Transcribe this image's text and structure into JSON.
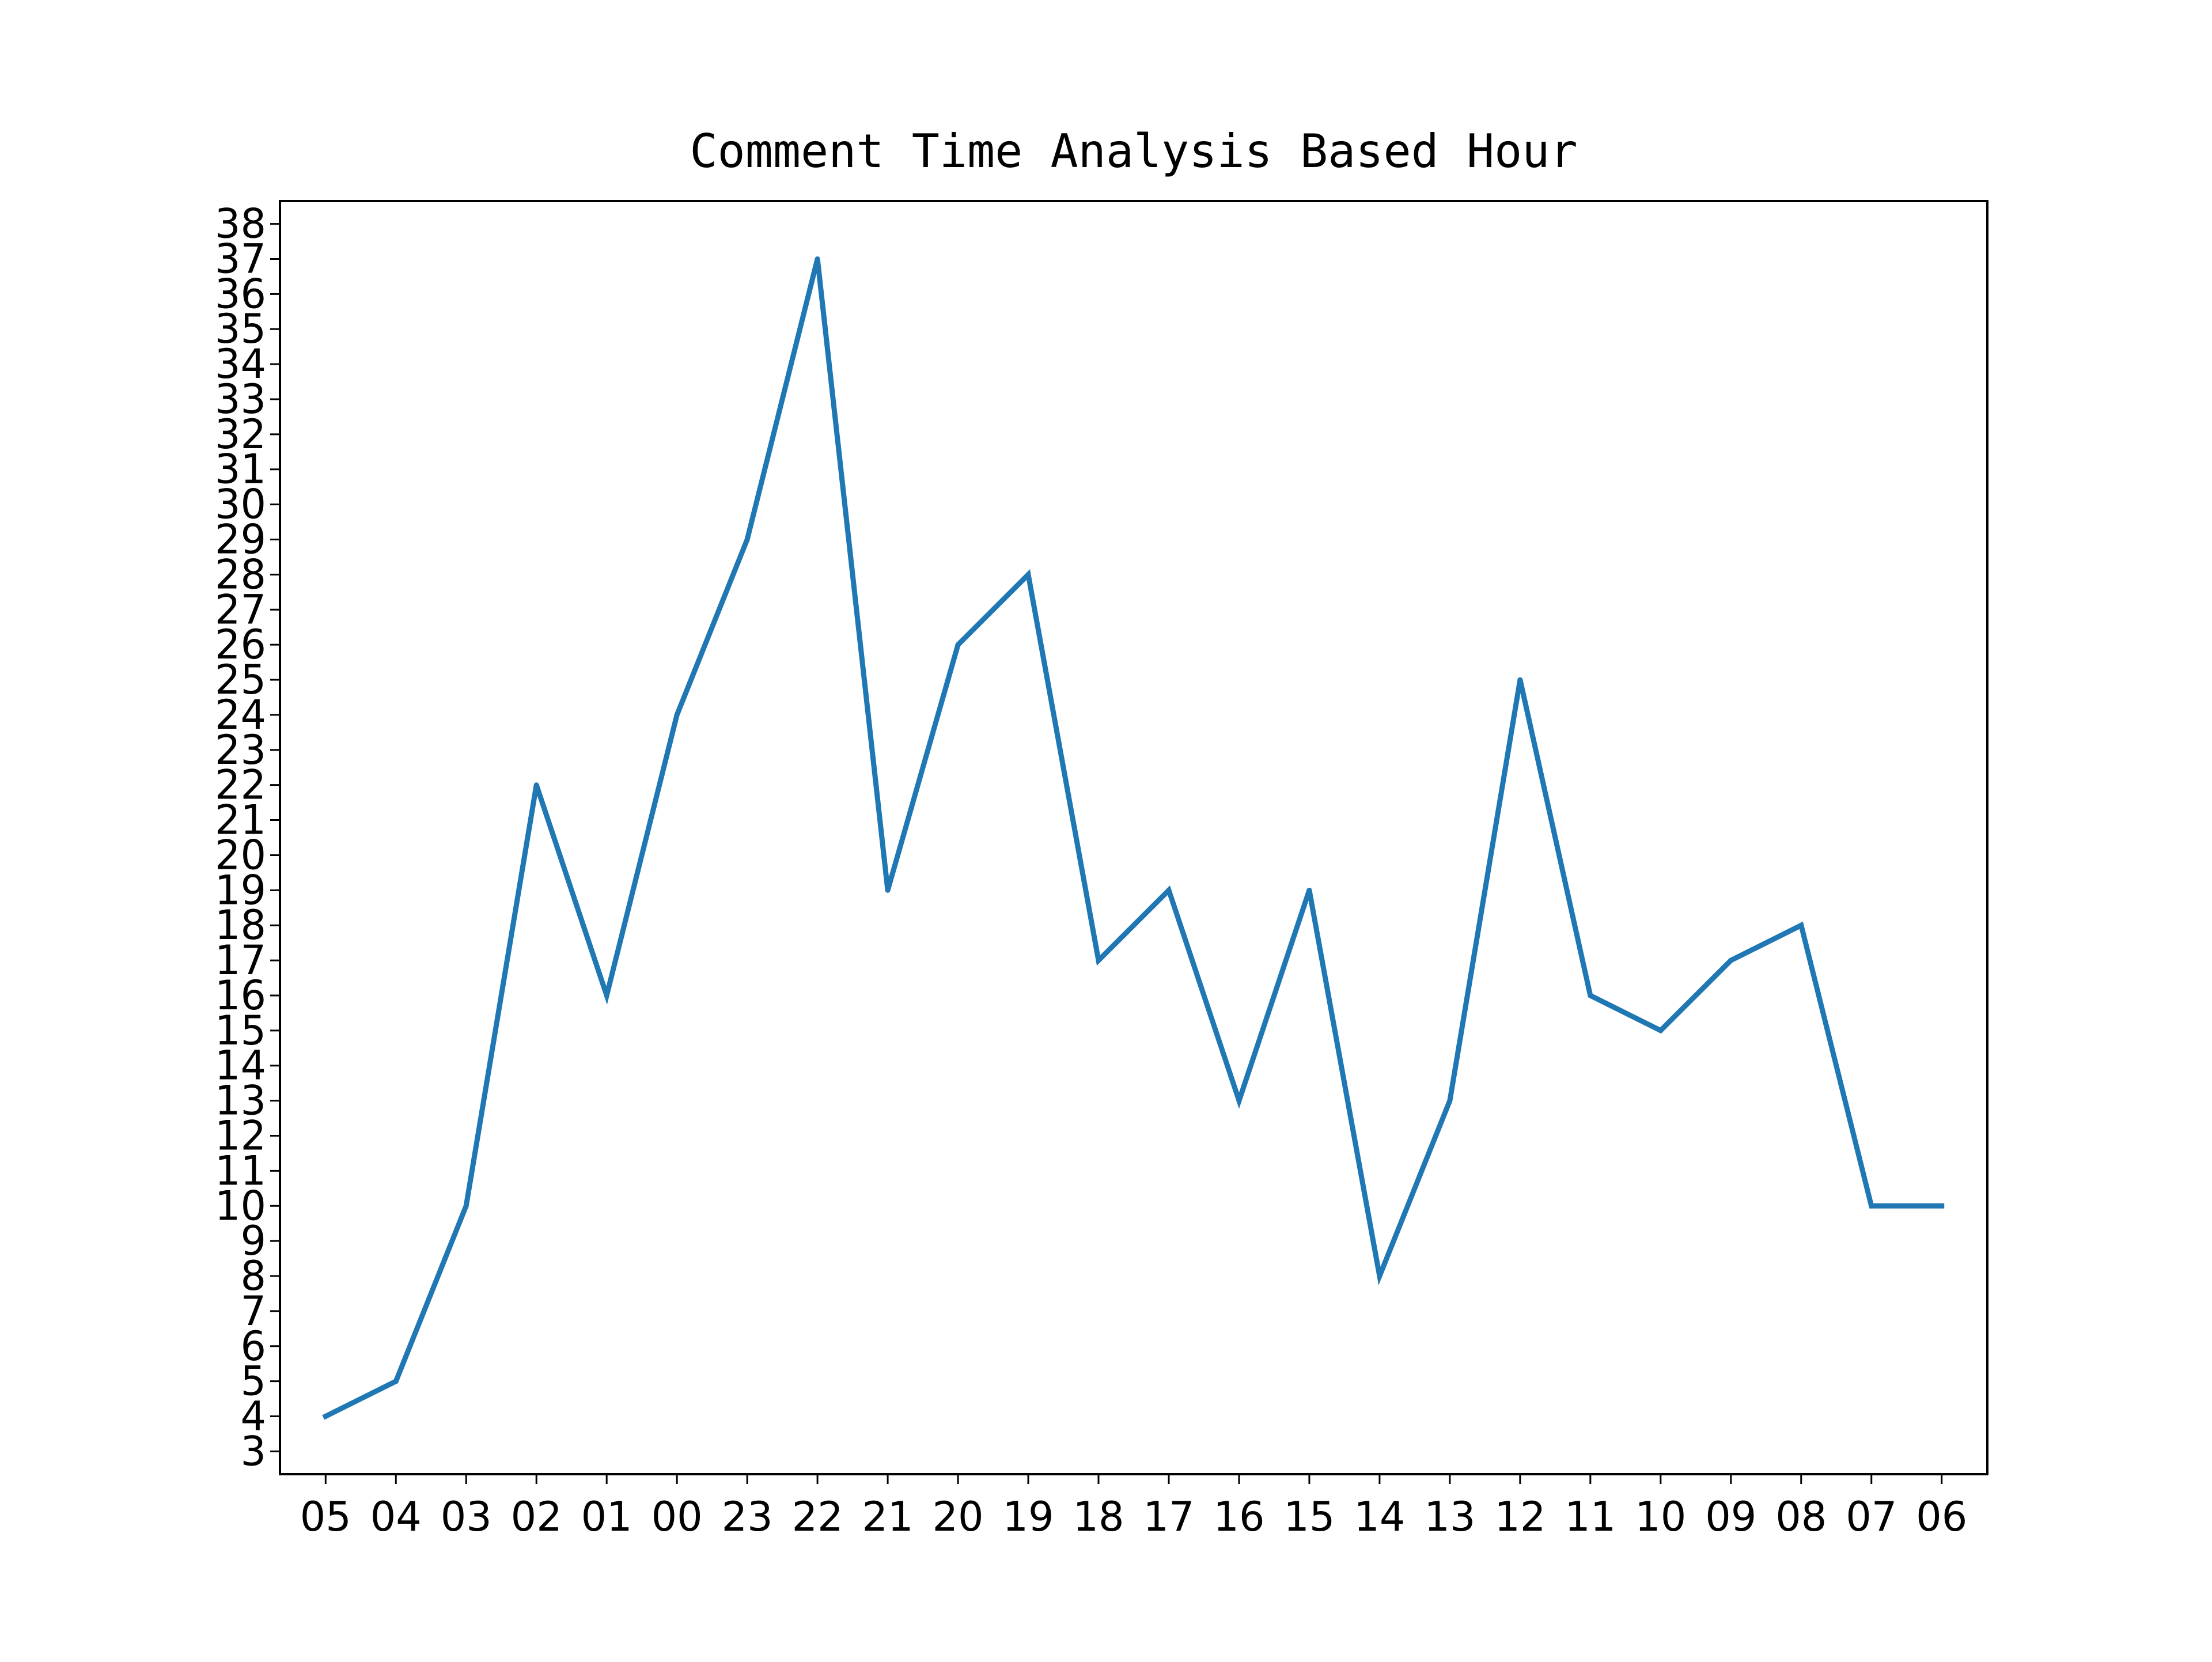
{
  "chart_data": {
    "type": "line",
    "title": "Comment Time Analysis Based Hour",
    "xlabel": "",
    "ylabel": "",
    "categories": [
      "05",
      "04",
      "03",
      "02",
      "01",
      "00",
      "23",
      "22",
      "21",
      "20",
      "19",
      "18",
      "17",
      "16",
      "15",
      "14",
      "13",
      "12",
      "11",
      "10",
      "09",
      "08",
      "07",
      "06"
    ],
    "series": [
      {
        "values": [
          4,
          5,
          10,
          22,
          16,
          24,
          29,
          37,
          19,
          26,
          28,
          17,
          19,
          13,
          19,
          8,
          13,
          25,
          16,
          15,
          17,
          18,
          10,
          10
        ]
      }
    ],
    "yticks": [
      3,
      4,
      5,
      6,
      7,
      8,
      9,
      10,
      11,
      12,
      13,
      14,
      15,
      16,
      17,
      18,
      19,
      20,
      21,
      22,
      23,
      24,
      25,
      26,
      27,
      28,
      29,
      30,
      31,
      32,
      33,
      34,
      35,
      36,
      37,
      38
    ],
    "ylim": [
      2.35,
      38.65
    ],
    "grid": false,
    "legend": "none",
    "colors": {
      "line": "#1f77b4",
      "axes": "#000000",
      "background": "#ffffff"
    }
  }
}
